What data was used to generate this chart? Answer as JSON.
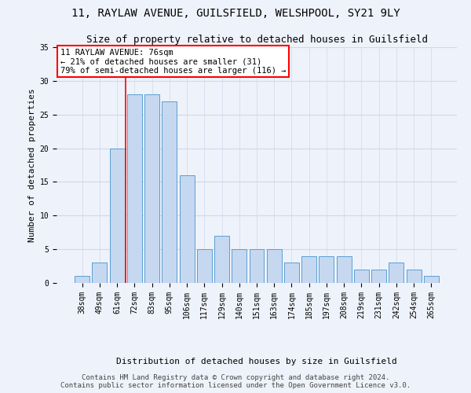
{
  "title_line1": "11, RAYLAW AVENUE, GUILSFIELD, WELSHPOOL, SY21 9LY",
  "title_line2": "Size of property relative to detached houses in Guilsfield",
  "xlabel": "Distribution of detached houses by size in Guilsfield",
  "ylabel": "Number of detached properties",
  "categories": [
    "38sqm",
    "49sqm",
    "61sqm",
    "72sqm",
    "83sqm",
    "95sqm",
    "106sqm",
    "117sqm",
    "129sqm",
    "140sqm",
    "151sqm",
    "163sqm",
    "174sqm",
    "185sqm",
    "197sqm",
    "208sqm",
    "219sqm",
    "231sqm",
    "242sqm",
    "254sqm",
    "265sqm"
  ],
  "values": [
    1,
    3,
    20,
    28,
    28,
    27,
    16,
    5,
    7,
    5,
    5,
    5,
    3,
    4,
    4,
    4,
    2,
    2,
    3,
    2,
    1
  ],
  "bar_color": "#c5d8f0",
  "bar_edge_color": "#5a9fd4",
  "grid_color": "#d0d8e8",
  "background_color": "#eef2fa",
  "annotation_text": "11 RAYLAW AVENUE: 76sqm\n← 21% of detached houses are smaller (31)\n79% of semi-detached houses are larger (116) →",
  "annotation_box_color": "white",
  "annotation_box_edge_color": "red",
  "vline_x_index": 2.5,
  "vline_color": "red",
  "ylim": [
    0,
    35
  ],
  "yticks": [
    0,
    5,
    10,
    15,
    20,
    25,
    30,
    35
  ],
  "footer_line1": "Contains HM Land Registry data © Crown copyright and database right 2024.",
  "footer_line2": "Contains public sector information licensed under the Open Government Licence v3.0.",
  "title_fontsize": 10,
  "subtitle_fontsize": 9,
  "axis_label_fontsize": 8,
  "tick_fontsize": 7,
  "annotation_fontsize": 7.5,
  "footer_fontsize": 6.5
}
